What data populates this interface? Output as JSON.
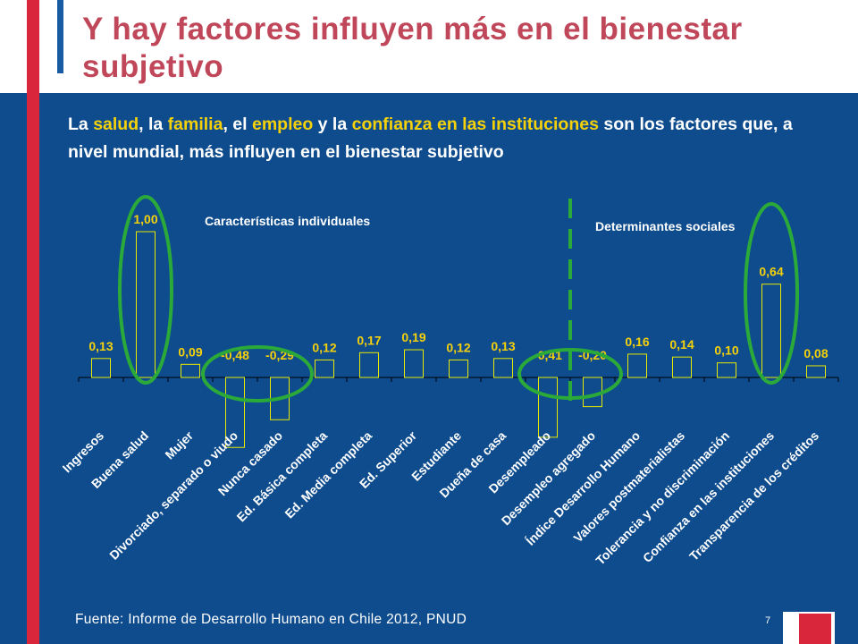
{
  "title": "Y hay factores influyen más en el bienestar subjetivo",
  "subtitle": {
    "p1": "La ",
    "h1": "salud",
    "p2": ", la ",
    "h2": "familia",
    "p3": ", el ",
    "h3": "empleo",
    "p4": " y la ",
    "h4": "confianza en las instituciones",
    "p5": " son los factores que, a nivel mundial, más influyen en el bienestar subjetivo"
  },
  "chart_data": {
    "type": "bar",
    "categories": [
      "Ingresos",
      "Buena salud",
      "Mujer",
      "Divorciado, separado o viudo",
      "Nunca casado",
      "Ed. Básica completa",
      "Ed. Media completa",
      "Ed. Superior",
      "Estudiante",
      "Dueña de casa",
      "Desempleado",
      "Desempleo agregado",
      "Índice Desarrollo Humano",
      "Valores postmaterialistas",
      "Tolerancia y no discriminación",
      "Confianza en las instituciones",
      "Transparencia de los créditos"
    ],
    "values": [
      0.13,
      1.0,
      0.09,
      -0.48,
      -0.29,
      0.12,
      0.17,
      0.19,
      0.12,
      0.13,
      -0.41,
      -0.2,
      0.16,
      0.14,
      0.1,
      0.64,
      0.08
    ],
    "labels": [
      "0,13",
      "1,00",
      "0,09",
      "-0,48",
      "-0,29",
      "0,12",
      "0,17",
      "0,19",
      "0,12",
      "0,13",
      "-0,41",
      "-0,20",
      "0,16",
      "0,14",
      "0,10",
      "0,64",
      "0,08"
    ],
    "groups": [
      "Características individuales",
      "Determinantes sociales"
    ],
    "highlighted": [
      "Buena salud",
      "Divorciado, separado o viudo",
      "Nunca casado",
      "Desempleado",
      "Desempleo agregado",
      "Confianza en las instituciones"
    ],
    "ylim": [
      -0.5,
      1.0
    ],
    "colors": {
      "bar_fill": "#0E4C8E",
      "bar_edge": "#E8E800",
      "label": "#F5D10A",
      "ellipse": "#2BAA3A",
      "divider": "#2BAA3A"
    }
  },
  "source": "Fuente: Informe de Desarrollo Humano en Chile 2012, PNUD",
  "page_number": "7"
}
